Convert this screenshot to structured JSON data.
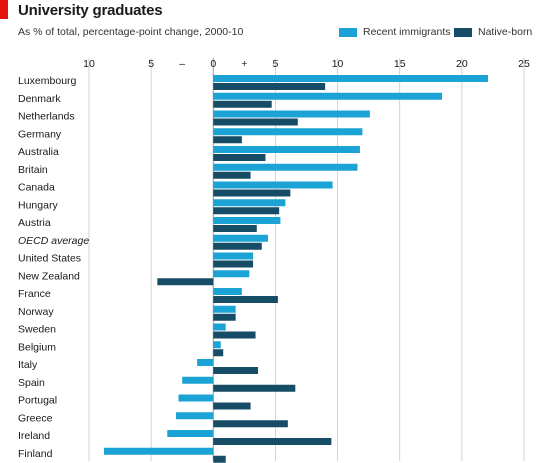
{
  "header": {
    "title": "University graduates",
    "subtitle": "As % of total, percentage-point change, 2000-10"
  },
  "legend": {
    "immigrants_label": "Recent immigrants",
    "native_label": "Native-born"
  },
  "colors": {
    "immigrants": "#1ba3d6",
    "native": "#164c66",
    "grid": "#c8c8c8",
    "brand_red": "#e3120b"
  },
  "chart_data": {
    "type": "bar",
    "orientation": "horizontal",
    "title": "University graduates",
    "subtitle": "As % of total, percentage-point change, 2000-10",
    "xlim": [
      -10,
      25
    ],
    "xticks": [
      -10,
      -5,
      0,
      5,
      10,
      15,
      20,
      25
    ],
    "xtick_labels": [
      "10",
      "5",
      "0",
      "5",
      "10",
      "15",
      "20",
      "25"
    ],
    "sign_labels": [
      "–",
      "+"
    ],
    "grid": true,
    "legend_position": "top-right",
    "categories": [
      "Luxembourg",
      "Denmark",
      "Netherlands",
      "Germany",
      "Australia",
      "Britain",
      "Canada",
      "Hungary",
      "Austria",
      "OECD average",
      "United States",
      "New Zealand",
      "France",
      "Norway",
      "Sweden",
      "Belgium",
      "Italy",
      "Spain",
      "Portugal",
      "Greece",
      "Ireland",
      "Finland"
    ],
    "series": [
      {
        "name": "Recent immigrants",
        "values": [
          22.1,
          18.4,
          12.6,
          12.0,
          11.8,
          11.6,
          9.6,
          5.8,
          5.4,
          4.4,
          3.2,
          2.9,
          2.3,
          1.8,
          1.0,
          0.6,
          -1.3,
          -2.5,
          -2.8,
          -3.0,
          -3.7,
          -8.8
        ]
      },
      {
        "name": "Native-born",
        "values": [
          9.0,
          4.7,
          6.8,
          2.3,
          4.2,
          3.0,
          6.2,
          5.3,
          3.5,
          3.9,
          3.2,
          -4.5,
          5.2,
          1.8,
          3.4,
          0.8,
          3.6,
          6.6,
          3.0,
          6.0,
          9.5,
          1.0
        ]
      }
    ],
    "italic_categories": [
      "OECD average"
    ]
  }
}
